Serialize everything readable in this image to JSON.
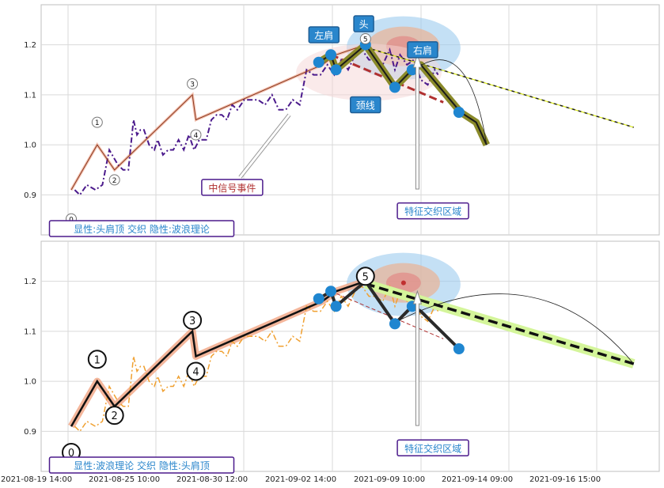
{
  "chart_data": [
    {
      "type": "line",
      "panel": "top",
      "ylim": [
        0.82,
        1.28
      ],
      "xlim": [
        0,
        33.7
      ],
      "y_ticks": [
        0.9,
        1.0,
        1.1,
        1.2
      ],
      "x_ticks_values": [
        0,
        5,
        10,
        15,
        20,
        25,
        30
      ],
      "grid": true,
      "caption": "显性:头肩顶 交织 隐性:波浪理论",
      "series": [
        {
          "role": "price_dashdot",
          "color": "#4b1a8c",
          "x": [
            0.2,
            0.5,
            0.9,
            1.4,
            1.8,
            2.2,
            2.7,
            3.0,
            3.3,
            3.6,
            3.8,
            4.0,
            4.2,
            4.5,
            4.8,
            5.0,
            5.3,
            5.6,
            5.9,
            6.2,
            6.5,
            6.8,
            7.1,
            7.4,
            7.8,
            8.1,
            8.4,
            8.7,
            9.0,
            9.3,
            9.6,
            10.0,
            10.4,
            10.8,
            11.2,
            11.6,
            12.0,
            12.4,
            12.8,
            13.2,
            13.6,
            14.0,
            14.4,
            14.8,
            15.2,
            15.6,
            16.0,
            16.4,
            16.8,
            17.2,
            17.6,
            18.0,
            18.4,
            18.7,
            19.0,
            19.4,
            19.8,
            20.2,
            20.6,
            21.0,
            21.2
          ],
          "y": [
            0.91,
            0.9,
            0.92,
            0.91,
            0.92,
            0.99,
            0.96,
            0.95,
            0.95,
            1.05,
            1.02,
            1.03,
            1.03,
            1.0,
            0.99,
            1.01,
            0.98,
            0.99,
            0.99,
            1.01,
            0.99,
            1.02,
            0.99,
            1.01,
            1.01,
            1.05,
            1.06,
            1.06,
            1.05,
            1.08,
            1.07,
            1.09,
            1.09,
            1.09,
            1.08,
            1.1,
            1.07,
            1.07,
            1.09,
            1.08,
            1.15,
            1.14,
            1.14,
            1.16,
            1.14,
            1.17,
            1.15,
            1.18,
            1.19,
            1.17,
            1.17,
            1.16,
            1.19,
            1.15,
            1.18,
            1.16,
            1.17,
            1.13,
            1.12,
            1.15,
            1.14
          ]
        },
        {
          "role": "wave",
          "x": [
            0.0,
            1.5,
            2.5,
            7.0,
            7.2,
            14.5,
            15.3,
            17.0
          ],
          "y": [
            0.91,
            1.0,
            0.95,
            1.1,
            1.05,
            1.16,
            1.18,
            1.2
          ]
        },
        {
          "role": "head_shoulders",
          "x": [
            14.3,
            15.0,
            15.3,
            17.0,
            18.7,
            19.7,
            20.2,
            22.5,
            23.4,
            24.0
          ],
          "y": [
            1.165,
            1.18,
            1.15,
            1.2,
            1.115,
            1.15,
            1.16,
            1.065,
            1.045,
            1.0
          ]
        },
        {
          "role": "projection",
          "x": [
            17.0,
            32.5
          ],
          "y": [
            1.195,
            1.035
          ]
        },
        {
          "role": "neckline",
          "x": [
            15.0,
            21.5
          ],
          "y": [
            1.18,
            1.085
          ]
        },
        {
          "role": "key_points",
          "x": [
            14.3,
            15.0,
            15.3,
            17.0,
            18.7,
            19.7,
            22.4
          ],
          "y": [
            1.165,
            1.18,
            1.15,
            1.2,
            1.115,
            1.15,
            1.065
          ]
        }
      ],
      "wave_labels": [
        {
          "text": "0",
          "x": 0.0,
          "y": 0.852,
          "style": "small"
        },
        {
          "text": "1",
          "x": 1.5,
          "y": 1.045,
          "style": "small"
        },
        {
          "text": "2",
          "x": 2.5,
          "y": 0.93,
          "style": "small"
        },
        {
          "text": "3",
          "x": 7.0,
          "y": 1.122,
          "style": "small"
        },
        {
          "text": "4",
          "x": 7.2,
          "y": 1.02,
          "style": "small"
        },
        {
          "text": "5",
          "x": 17.0,
          "y": 1.212,
          "style": "small"
        }
      ],
      "annotations": [
        {
          "text": "左肩",
          "kind": "blue-box",
          "x": 14.6,
          "y": 1.22
        },
        {
          "text": "头",
          "kind": "blue-box",
          "x": 16.9,
          "y": 1.242
        },
        {
          "text": "右肩",
          "kind": "blue-box",
          "x": 20.3,
          "y": 1.19
        },
        {
          "text": "颈线",
          "kind": "blue-box",
          "x": 17.0,
          "y": 1.08
        },
        {
          "text": "中信号事件",
          "kind": "purple-box",
          "x": 9.3,
          "y": 0.915
        },
        {
          "text": "特征交织区域",
          "kind": "purple-box",
          "x": 20.9,
          "y": 0.868
        }
      ]
    },
    {
      "type": "line",
      "panel": "bottom",
      "ylim": [
        0.82,
        1.28
      ],
      "xlim": [
        0,
        33.7
      ],
      "y_ticks": [
        0.9,
        1.0,
        1.1,
        1.2
      ],
      "grid": true,
      "caption": "显性:波浪理论 交织 隐性:头肩顶",
      "series": [
        {
          "role": "price_dashdot",
          "color": "#f0a030",
          "x": [
            0.2,
            0.5,
            0.9,
            1.4,
            1.8,
            2.2,
            2.7,
            3.0,
            3.3,
            3.6,
            3.8,
            4.0,
            4.2,
            4.5,
            4.8,
            5.0,
            5.3,
            5.6,
            5.9,
            6.2,
            6.5,
            6.8,
            7.1,
            7.4,
            7.8,
            8.1,
            8.4,
            8.7,
            9.0,
            9.3,
            9.6,
            10.0,
            10.4,
            10.8,
            11.2,
            11.6,
            12.0,
            12.4,
            12.8,
            13.2,
            13.6,
            14.0,
            14.4,
            14.8,
            15.2,
            15.6,
            16.0,
            16.4,
            16.8,
            17.2,
            17.6,
            18.0,
            18.4,
            18.7,
            19.0,
            19.4,
            19.8,
            20.2,
            20.6,
            21.0,
            21.2
          ],
          "y": [
            0.91,
            0.9,
            0.92,
            0.91,
            0.92,
            0.99,
            0.96,
            0.95,
            0.95,
            1.05,
            1.02,
            1.03,
            1.03,
            1.0,
            0.99,
            1.01,
            0.98,
            0.99,
            0.99,
            1.01,
            0.99,
            1.02,
            0.99,
            1.01,
            1.01,
            1.05,
            1.06,
            1.06,
            1.05,
            1.08,
            1.07,
            1.09,
            1.09,
            1.09,
            1.08,
            1.1,
            1.07,
            1.07,
            1.09,
            1.08,
            1.15,
            1.14,
            1.14,
            1.16,
            1.14,
            1.17,
            1.15,
            1.18,
            1.19,
            1.17,
            1.17,
            1.16,
            1.19,
            1.15,
            1.18,
            1.16,
            1.17,
            1.13,
            1.12,
            1.15,
            1.14
          ]
        },
        {
          "role": "wave",
          "x": [
            0.0,
            1.5,
            2.5,
            7.0,
            7.2,
            14.5,
            15.3,
            17.0
          ],
          "y": [
            0.91,
            1.0,
            0.95,
            1.1,
            1.05,
            1.16,
            1.18,
            1.2
          ]
        },
        {
          "role": "head_shoulders",
          "x": [
            14.3,
            15.0,
            15.3,
            17.0,
            18.7,
            19.7,
            20.2,
            22.4
          ],
          "y": [
            1.165,
            1.18,
            1.15,
            1.2,
            1.115,
            1.15,
            1.14,
            1.065
          ]
        },
        {
          "role": "projection",
          "x": [
            17.0,
            32.5
          ],
          "y": [
            1.195,
            1.035
          ]
        },
        {
          "role": "neckline",
          "x": [
            15.0,
            21.5
          ],
          "y": [
            1.18,
            1.085
          ]
        },
        {
          "role": "key_points",
          "x": [
            14.3,
            15.0,
            15.3,
            18.7,
            19.7,
            22.4
          ],
          "y": [
            1.165,
            1.18,
            1.15,
            1.115,
            1.15,
            1.065
          ]
        }
      ],
      "wave_labels": [
        {
          "text": "0",
          "x": 0.0,
          "y": 0.858,
          "style": "large"
        },
        {
          "text": "1",
          "x": 1.5,
          "y": 1.044,
          "style": "large"
        },
        {
          "text": "2",
          "x": 2.5,
          "y": 0.932,
          "style": "large"
        },
        {
          "text": "3",
          "x": 7.0,
          "y": 1.122,
          "style": "large"
        },
        {
          "text": "4",
          "x": 7.2,
          "y": 1.02,
          "style": "large"
        },
        {
          "text": "5",
          "x": 17.0,
          "y": 1.21,
          "style": "large"
        }
      ],
      "annotations": [
        {
          "text": "特征交织区域",
          "kind": "purple-box",
          "x": 20.9,
          "y": 0.867
        }
      ]
    }
  ],
  "x_ticks": [
    "2021-08-19 14:00",
    "2021-08-25 10:00",
    "2021-08-30 12:00",
    "2021-09-02 14:00",
    "2021-09-09 10:00",
    "2021-09-14 09:00",
    "2021-09-16 15:00"
  ],
  "colors": {
    "purple_line": "#4b1a8c",
    "orange_line": "#f0a030",
    "blue_box": "#2a86cc",
    "purple_box": "#4b1a8c",
    "point": "#1f86d0",
    "neckline": "#b03030",
    "wave_band": "#f2a98a",
    "olive": "#8a8a2a",
    "projection_band": "#d4f59a"
  }
}
